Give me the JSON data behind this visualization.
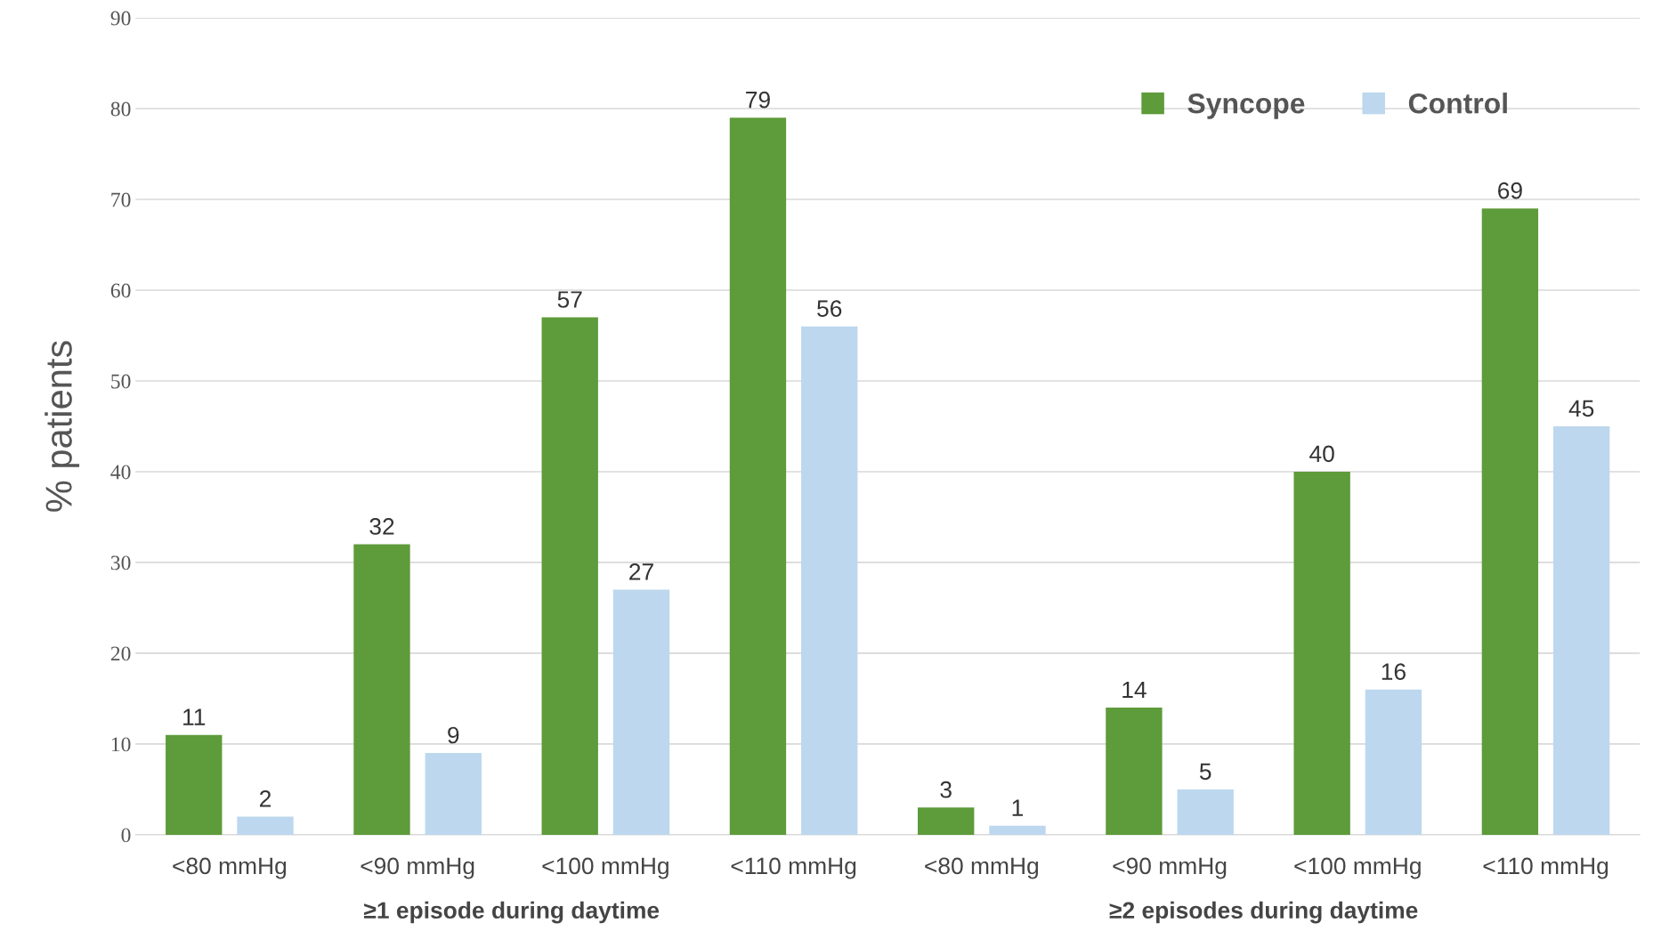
{
  "chart_data": {
    "type": "bar",
    "ylabel": "% patients",
    "categories": [
      "<80 mmHg",
      "<90 mmHg",
      "<100 mmHg",
      "<110 mmHg",
      "<80 mmHg",
      "<90 mmHg",
      "<100 mmHg",
      "<110 mmHg"
    ],
    "series": [
      {
        "name": "Syncope",
        "color": "#5e9b3a",
        "values": [
          11,
          32,
          57,
          79,
          3,
          14,
          40,
          69
        ]
      },
      {
        "name": "Control",
        "color": "#bdd7ee",
        "values": [
          2,
          9,
          27,
          56,
          1,
          5,
          16,
          45
        ]
      }
    ],
    "ylim": [
      0,
      90
    ],
    "yticks": [
      0,
      10,
      20,
      30,
      40,
      50,
      60,
      70,
      80,
      90
    ],
    "grid": "y",
    "legend": "top right",
    "data_labels": true,
    "annotations": [
      "≥1 episode during daytime",
      "≥2 episodes during daytime"
    ]
  }
}
